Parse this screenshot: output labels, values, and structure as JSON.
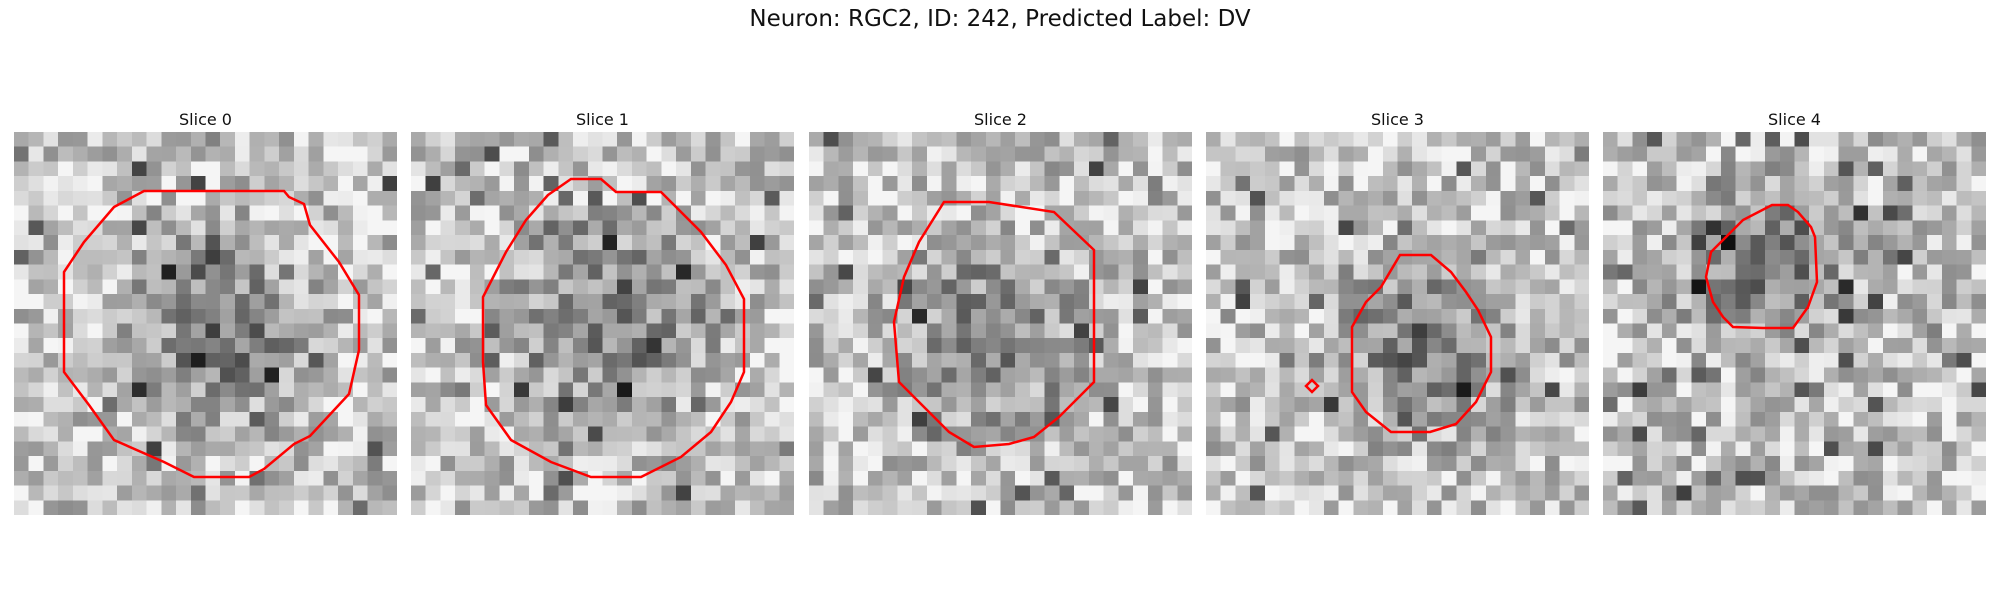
{
  "figure": {
    "title": "Neuron: RGC2, ID: 242, Predicted Label: DV"
  },
  "colors": {
    "contour": "#ff0000",
    "background": "#ffffff"
  },
  "slices": [
    {
      "label": "Slice 0",
      "seed": 11,
      "dark_center": true
    },
    {
      "label": "Slice 1",
      "seed": 23,
      "dark_center": true
    },
    {
      "label": "Slice 2",
      "seed": 37,
      "dark_center": true
    },
    {
      "label": "Slice 3",
      "seed": 51,
      "dark_center": true
    },
    {
      "label": "Slice 4",
      "seed": 67,
      "dark_center": true
    }
  ]
}
